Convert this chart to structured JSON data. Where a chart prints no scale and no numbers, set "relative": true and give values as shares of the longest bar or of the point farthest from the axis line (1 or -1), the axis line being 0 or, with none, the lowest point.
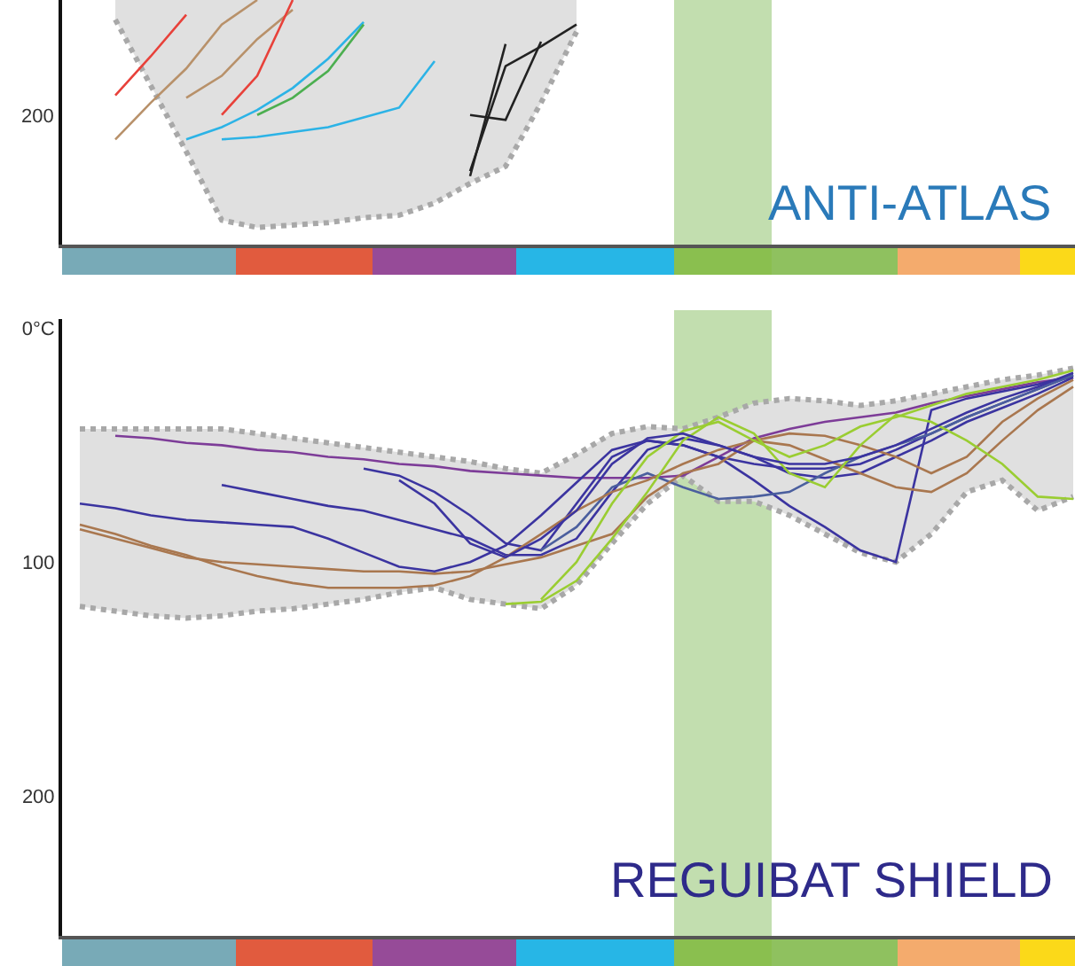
{
  "chart_data": [
    {
      "type": "line",
      "title": "ANTI-ATLAS",
      "relative": true,
      "categories": [
        null,
        null,
        null,
        null,
        null,
        null,
        null,
        null,
        null,
        null,
        null,
        null,
        null,
        null,
        null,
        null,
        null,
        null,
        null,
        null,
        null,
        null,
        null,
        null,
        null,
        null,
        null,
        null,
        null
      ],
      "tick_labels": false,
      "grid": false,
      "legend": false,
      "annotations": [
        "200"
      ],
      "series": [
        {
          "type": "line",
          "color": "#a8a8a8",
          "line_style": "dotted",
          "values": [
            null,
            0.92,
            0.65,
            0.38,
            0.1,
            0.07,
            0.08,
            0.09,
            0.11,
            0.12,
            0.17,
            0.25,
            0.32,
            0.58,
            0.87,
            null,
            null,
            null,
            null,
            null,
            null,
            null,
            null,
            null,
            null,
            null,
            null,
            null,
            null
          ],
          "lower": [
            null,
            0.92,
            0.65,
            0.38,
            0.1,
            0.07,
            0.08,
            0.09,
            0.11,
            0.12,
            0.17,
            0.25,
            0.32,
            0.58,
            0.87,
            null,
            null,
            null,
            null,
            null,
            null,
            null,
            null,
            null,
            null,
            null,
            null,
            null,
            null
          ],
          "upper": [
            null,
            1,
            1,
            1,
            1,
            1,
            1,
            1,
            1,
            1,
            1,
            1,
            1,
            1,
            1,
            null,
            null,
            null,
            null,
            null,
            null,
            null,
            null,
            null,
            null,
            null,
            null,
            null,
            null
          ]
        },
        {
          "color": "#e8413a",
          "values": [
            null,
            0.61,
            0.77,
            0.94,
            null,
            null,
            null,
            null,
            null,
            null,
            null,
            null,
            null,
            null,
            null,
            null,
            null,
            null,
            null,
            null,
            null,
            null,
            null,
            null,
            null,
            null,
            null,
            null,
            null
          ]
        },
        {
          "color": "#b8916a",
          "values": [
            null,
            0.43,
            0.58,
            0.72,
            0.9,
            1,
            null,
            null,
            null,
            null,
            null,
            null,
            null,
            null,
            null,
            null,
            null,
            null,
            null,
            null,
            null,
            null,
            null,
            null,
            null,
            null,
            null,
            null,
            null
          ]
        },
        {
          "color": "#b8916a",
          "values": [
            null,
            null,
            null,
            0.6,
            0.69,
            0.84,
            0.96,
            null,
            null,
            null,
            null,
            null,
            null,
            null,
            null,
            null,
            null,
            null,
            null,
            null,
            null,
            null,
            null,
            null,
            null,
            null,
            null,
            null,
            null
          ]
        },
        {
          "color": "#e8413a",
          "values": [
            null,
            null,
            null,
            null,
            0.53,
            0.69,
            1,
            null,
            null,
            null,
            null,
            null,
            null,
            null,
            null,
            null,
            null,
            null,
            null,
            null,
            null,
            null,
            null,
            null,
            null,
            null,
            null,
            null,
            null
          ]
        },
        {
          "color": "#2cb3e6",
          "values": [
            null,
            null,
            null,
            0.43,
            0.48,
            0.55,
            0.64,
            0.76,
            0.91,
            null,
            null,
            null,
            null,
            null,
            null,
            null,
            null,
            null,
            null,
            null,
            null,
            null,
            null,
            null,
            null,
            null,
            null,
            null,
            null
          ]
        },
        {
          "color": "#4caf50",
          "values": [
            null,
            null,
            null,
            null,
            null,
            0.53,
            0.6,
            0.71,
            0.9,
            null,
            null,
            null,
            null,
            null,
            null,
            null,
            null,
            null,
            null,
            null,
            null,
            null,
            null,
            null,
            null,
            null,
            null,
            null,
            null
          ]
        },
        {
          "color": "#2cb3e6",
          "values": [
            null,
            null,
            null,
            null,
            0.43,
            0.44,
            0.46,
            0.48,
            0.52,
            0.56,
            0.75,
            null,
            null,
            null,
            null,
            null,
            null,
            null,
            null,
            null,
            null,
            null,
            null,
            null,
            null,
            null,
            null,
            null,
            null
          ]
        },
        {
          "color": "#222222",
          "values": [
            null,
            null,
            null,
            null,
            null,
            null,
            null,
            null,
            null,
            null,
            null,
            0.53,
            0.51,
            0.83,
            null,
            null,
            null,
            null,
            null,
            null,
            null,
            null,
            null,
            null,
            null,
            null,
            null,
            null,
            null
          ]
        },
        {
          "color": "#222222",
          "values": [
            null,
            null,
            null,
            null,
            null,
            null,
            null,
            null,
            null,
            null,
            null,
            0.3,
            0.73,
            0.81,
            0.9,
            null,
            null,
            null,
            null,
            null,
            null,
            null,
            null,
            null,
            null,
            null,
            null,
            null,
            null
          ]
        },
        {
          "color": "#222222",
          "values": [
            null,
            null,
            null,
            null,
            null,
            null,
            null,
            null,
            null,
            null,
            null,
            0.28,
            0.82,
            null,
            null,
            null,
            null,
            null,
            null,
            null,
            null,
            null,
            null,
            null,
            null,
            null,
            null,
            null,
            null
          ]
        }
      ]
    },
    {
      "type": "line",
      "title": "REGUIBAT SHIELD",
      "categories": [
        null,
        null,
        null,
        null,
        null,
        null,
        null,
        null,
        null,
        null,
        null,
        null,
        null,
        null,
        null,
        null,
        null,
        null,
        null,
        null,
        null,
        null,
        null,
        null,
        null,
        null,
        null,
        null,
        null
      ],
      "ylim": [
        260,
        -4
      ],
      "yticks": [
        {
          "value": 0,
          "label": "0°C"
        },
        100,
        200
      ],
      "tick_labels": "y",
      "grid": false,
      "legend": false,
      "series": [
        {
          "type": "line",
          "color": "#a8a8a8",
          "line_style": "dotted",
          "values": [
            43,
            43,
            43,
            43,
            43,
            45,
            47,
            49,
            51,
            53,
            55,
            57,
            60,
            62,
            54,
            45,
            42,
            43,
            38,
            32,
            30,
            31,
            33,
            31,
            28,
            25,
            22,
            20,
            17
          ]
        },
        {
          "type": "area",
          "color": "#a8a8a8",
          "line_style": "dotted",
          "values": [
            119,
            121,
            123,
            124,
            123,
            121,
            120,
            118,
            116,
            113,
            111,
            116,
            118,
            120,
            110,
            92,
            75,
            63,
            74,
            74,
            80,
            88,
            96,
            100,
            88,
            70,
            65,
            78,
            72
          ]
        },
        {
          "color": "#7d3c98",
          "values": [
            null,
            46,
            47,
            49,
            50,
            52,
            53,
            55,
            56,
            58,
            59,
            61,
            62,
            63,
            64,
            64,
            64,
            63,
            55,
            47,
            43,
            40,
            38,
            36,
            32,
            29,
            26,
            23,
            21
          ]
        },
        {
          "color": "#3b34a0",
          "values": [
            75,
            77,
            80,
            82,
            83,
            84,
            85,
            90,
            96,
            102,
            104,
            100,
            93,
            80,
            66,
            52,
            48,
            50,
            55,
            58,
            60,
            60,
            58,
            52,
            45,
            38,
            32,
            26,
            20
          ]
        },
        {
          "color": "#3b34a0",
          "values": [
            null,
            null,
            null,
            null,
            67,
            70,
            73,
            76,
            78,
            82,
            86,
            90,
            97,
            97,
            90,
            70,
            52,
            47,
            50,
            55,
            62,
            64,
            62,
            55,
            48,
            40,
            34,
            28,
            21
          ]
        },
        {
          "color": "#3b34a0",
          "values": [
            null,
            null,
            null,
            null,
            null,
            null,
            null,
            null,
            60,
            63,
            70,
            80,
            92,
            95,
            75,
            55,
            48,
            50,
            55,
            65,
            76,
            85,
            95,
            100,
            35,
            30,
            27,
            24,
            20
          ]
        },
        {
          "color": "#4b5f9e",
          "values": [
            null,
            null,
            null,
            null,
            null,
            null,
            null,
            null,
            null,
            null,
            null,
            null,
            null,
            95,
            85,
            68,
            62,
            68,
            73,
            72,
            70,
            62,
            55,
            50,
            45,
            38,
            32,
            26,
            20
          ]
        },
        {
          "color": "#a9774f",
          "values": [
            86,
            90,
            94,
            98,
            100,
            101,
            102,
            103,
            104,
            104,
            105,
            104,
            101,
            98,
            93,
            88,
            72,
            62,
            58,
            48,
            45,
            46,
            50,
            55,
            62,
            55,
            40,
            30,
            22
          ]
        },
        {
          "color": "#a9774f",
          "values": [
            84,
            88,
            93,
            97,
            102,
            106,
            109,
            111,
            111,
            111,
            110,
            106,
            98,
            88,
            78,
            70,
            65,
            58,
            52,
            48,
            50,
            56,
            62,
            68,
            70,
            62,
            48,
            35,
            25
          ]
        },
        {
          "color": "#9acd32",
          "values": [
            null,
            null,
            null,
            null,
            null,
            null,
            null,
            null,
            null,
            null,
            null,
            null,
            118,
            117,
            108,
            90,
            70,
            48,
            38,
            45,
            62,
            68,
            50,
            37,
            40,
            48,
            58,
            72,
            73
          ]
        },
        {
          "color": "#9acd32",
          "values": [
            null,
            null,
            null,
            null,
            null,
            null,
            null,
            null,
            null,
            null,
            null,
            null,
            null,
            116,
            100,
            75,
            55,
            44,
            40,
            48,
            55,
            50,
            42,
            38,
            33,
            28,
            25,
            22,
            18
          ]
        },
        {
          "color": "#3b34a0",
          "values": [
            null,
            null,
            null,
            null,
            null,
            null,
            null,
            null,
            null,
            65,
            75,
            92,
            98,
            90,
            78,
            58,
            47,
            45,
            50,
            55,
            58,
            58,
            55,
            50,
            43,
            36,
            30,
            25,
            19
          ]
        }
      ]
    }
  ]
}
